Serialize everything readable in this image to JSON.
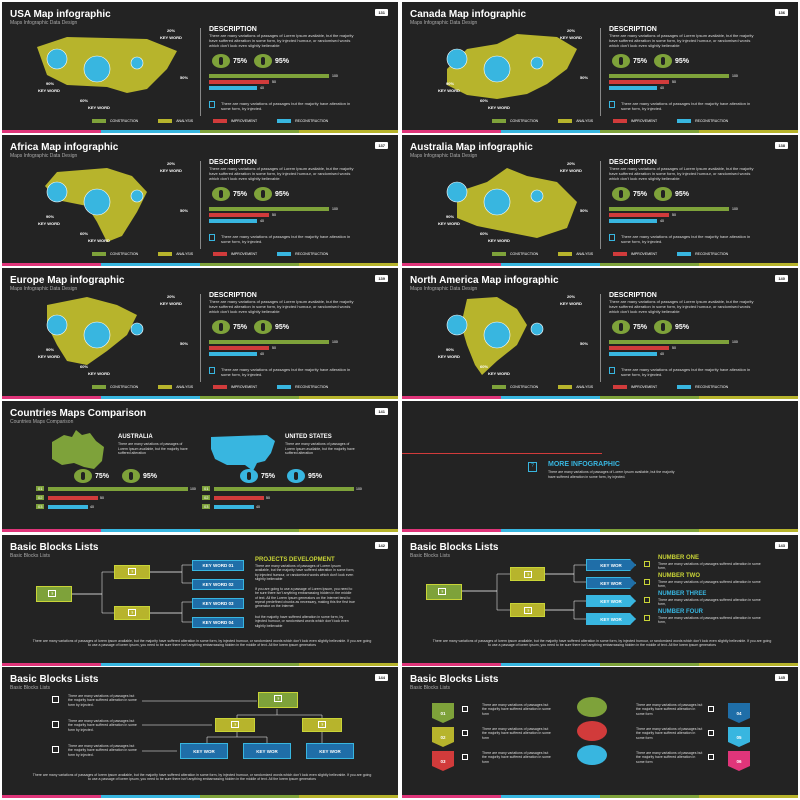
{
  "colors": {
    "construction": "#7ea23a",
    "analysis": "#b7b42c",
    "improvement": "#d13b3b",
    "reconstruction": "#38b6e0",
    "pink": "#e0357a",
    "dark": "#232323"
  },
  "common": {
    "subtitle": "Maps Infographic Data Design",
    "desc_heading": "DESCRIPTION",
    "desc_text": "There are many variations of passages of Lorem Ipsum available, but the majority have suffered alteration in some form, by injected humour, or randomised words which don't look even slightly believable",
    "pct1": "75%",
    "pct2": "95%",
    "bar_values": [
      "100",
      "50",
      "40"
    ],
    "note": "There are many variations of passages but the majority have alteration in some form, by injected.",
    "legend": [
      "CONSTRUCTION",
      "ANALYSIS",
      "IMPROVEMENT",
      "RECONSTRUCTION"
    ],
    "kw_labels": [
      "20%",
      "KEY WORD",
      "50%",
      "90%",
      "KEY WORD",
      "60%",
      "KEY WORD"
    ]
  },
  "slides": [
    {
      "title": "USA Map infographic",
      "page": "131"
    },
    {
      "title": "Canada Map infographic",
      "page": "136"
    },
    {
      "title": "Africa Map infographic",
      "page": "137"
    },
    {
      "title": "Australia Map infographic",
      "page": "138"
    },
    {
      "title": "Europe Map infographic",
      "page": "139"
    },
    {
      "title": "North America Map infographic",
      "page": "140"
    }
  ],
  "comparison": {
    "title": "Countries Maps Comparison",
    "subtitle": "Countries Maps Comparison",
    "page": "141",
    "left": {
      "name": "AUSTRALIA",
      "text": "There are many variations of passages of Lorem Ipsum available, but the majority have suffered alteration"
    },
    "right": {
      "name": "UNITED STATES",
      "text": "There are many variations of passages of Lorem Ipsum available, but the majority have suffered alteration"
    },
    "pct1": "75%",
    "pct2": "95%",
    "bars": [
      "100",
      "50",
      "40"
    ],
    "bar_labels": [
      "01",
      "02",
      "03"
    ]
  },
  "more": {
    "title": "MORE INFOGRAPHIC",
    "text": "There are many variations of passages of Lorem Ipsum available, but the majority have suffered alteration in some form, by injected."
  },
  "blocks": {
    "title": "Basic Blocks Lists",
    "subtitle": "Basic Blocks Lists",
    "p1": {
      "page": "142",
      "keywords": [
        "KEY WORD 01",
        "KEY WORD 02",
        "KEY WORD 03",
        "KEY WORD 04"
      ],
      "heading": "PROJECTS DEVELOPMENT",
      "text1": "There are many variations of passages of Lorem Ipsum available, but the majority have suffered alteration in some form, by injected humour, or randomised words which don't look even slightly believable",
      "text2": "If you are going to use a passage of Lorem Ipsum, you need to be sure there isn't anything embarrassing hidden in the middle of text. All the Lorem Ipsum generators on the Internet tend to repeat predefined chunks as necessary, making this the first true generator on the Internet",
      "text3": "but the majority have suffered alteration in some form, by injected humour, or randomised words which don't look even slightly believable"
    },
    "p2": {
      "page": "143",
      "keywords": [
        "KEY WOR",
        "KEY WOR",
        "KEY WOR",
        "KEY WOR"
      ],
      "numbers": [
        "NUMBER ONE",
        "NUMBER TWO",
        "NUMBER THREE",
        "NUMBER FOUR"
      ],
      "num_text": "There are many variations of passages suffered alteration in some form,"
    },
    "p3": {
      "page": "144",
      "keywords": [
        "KEY WOR",
        "KEY WOR",
        "KEY WOR"
      ],
      "item_text": "There are many variations of passages but the majority have suffered alteration in some form by injected."
    },
    "p4": {
      "page": "145",
      "numbers": [
        "01",
        "02",
        "03",
        "04",
        "05",
        "06"
      ],
      "item_text": "There are many variations of passages but the majority have suffered alteration in some form"
    },
    "footer": "There are many variations of passages of lorem ipsum available, but the majority have suffered alteration in some form, by injected humour, or randomized words which don't look even slightly believable. If you are going to use a passage of lorem ipsum, you need to be sure there isn't anything embarrassing hidden in the middle of text. All the lorem ipsum generators"
  },
  "icon_q": "?"
}
